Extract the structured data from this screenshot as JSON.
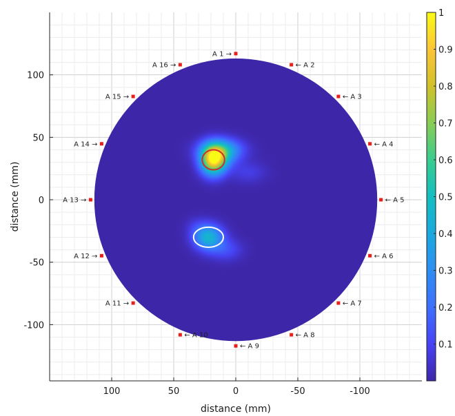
{
  "chart_data": {
    "type": "heatmap",
    "title": "",
    "xlabel": "distance (mm)",
    "ylabel": "distance (mm)",
    "xlim": [
      150,
      -150
    ],
    "ylim": [
      -145,
      150
    ],
    "x_reversed": true,
    "xticks": [
      100,
      50,
      0,
      -50,
      -100
    ],
    "xtick_labels": [
      "100",
      "50",
      "0",
      "-50",
      "-100"
    ],
    "yticks": [
      100,
      50,
      0,
      -50,
      -100
    ],
    "ytick_labels": [
      "100",
      "50",
      "0",
      "-50",
      "-100"
    ],
    "grid": true,
    "domain_radius": 114,
    "colorbar": {
      "min": 0,
      "max": 1,
      "colormap": "parula",
      "ticks": [
        1,
        0.9,
        0.8,
        0.7,
        0.6,
        0.5,
        0.4,
        0.3,
        0.2,
        0.1
      ],
      "tick_labels": [
        "1",
        "0.9",
        "0.8",
        "0.7",
        "0.6",
        "0.5",
        "0.4",
        "0.3",
        "0.2",
        "0.1"
      ]
    },
    "blobs": [
      {
        "x": 18,
        "y": 32,
        "sx": 7,
        "sy": 8,
        "amp": 0.95
      },
      {
        "x": 12,
        "y": 40,
        "sx": 12,
        "sy": 6,
        "amp": 0.3
      },
      {
        "x": 8,
        "y": 37,
        "sx": 8,
        "sy": 7,
        "amp": 0.15
      },
      {
        "x": -10,
        "y": 22,
        "sx": 10,
        "sy": 6,
        "amp": 0.08
      },
      {
        "x": 22,
        "y": -30,
        "sx": 8,
        "sy": 7,
        "amp": 0.45
      },
      {
        "x": 8,
        "y": -40,
        "sx": 9,
        "sy": 6,
        "amp": 0.12
      },
      {
        "x": 32,
        "y": -22,
        "sx": 6,
        "sy": 6,
        "amp": 0.05
      }
    ],
    "targets": [
      {
        "x": 18,
        "y": 32,
        "rx": 9,
        "ry": 8,
        "color": "#d0302b"
      },
      {
        "x": 22,
        "y": -30,
        "rx": 12,
        "ry": 8,
        "color": "#ffffff"
      }
    ],
    "antennas": [
      {
        "label": "A 1",
        "x": 0,
        "y": 117,
        "side": "left"
      },
      {
        "label": "A 2",
        "x": -44.8,
        "y": 108.1,
        "side": "right"
      },
      {
        "label": "A 3",
        "x": -82.7,
        "y": 82.7,
        "side": "right"
      },
      {
        "label": "A 4",
        "x": -108.1,
        "y": 44.8,
        "side": "right"
      },
      {
        "label": "A 5",
        "x": -117,
        "y": 0,
        "side": "right"
      },
      {
        "label": "A 6",
        "x": -108.1,
        "y": -44.8,
        "side": "right"
      },
      {
        "label": "A 7",
        "x": -82.7,
        "y": -82.7,
        "side": "right"
      },
      {
        "label": "A 8",
        "x": -44.8,
        "y": -108.1,
        "side": "right"
      },
      {
        "label": "A 9",
        "x": 0,
        "y": -117,
        "side": "right"
      },
      {
        "label": "A 10",
        "x": 44.8,
        "y": -108.1,
        "side": "right"
      },
      {
        "label": "A 11",
        "x": 82.7,
        "y": -82.7,
        "side": "left"
      },
      {
        "label": "A 12",
        "x": 108.1,
        "y": -44.8,
        "side": "left"
      },
      {
        "label": "A 13",
        "x": 117,
        "y": 0,
        "side": "left"
      },
      {
        "label": "A 14",
        "x": 108.1,
        "y": 44.8,
        "side": "left"
      },
      {
        "label": "A 15",
        "x": 82.7,
        "y": 82.7,
        "side": "left"
      },
      {
        "label": "A 16",
        "x": 44.8,
        "y": 108.1,
        "side": "left"
      }
    ]
  },
  "colors": {
    "background": "#3e26a8",
    "antenna": "#e8201a",
    "grid": "#dcdcdc",
    "axis": "#222222"
  }
}
